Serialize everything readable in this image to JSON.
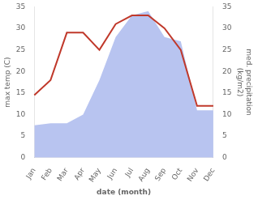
{
  "chart_data": {
    "type": "line",
    "categories": [
      "Jan",
      "Feb",
      "Mar",
      "Apr",
      "May",
      "Jun",
      "Jul",
      "Aug",
      "Sep",
      "Oct",
      "Nov",
      "Dec"
    ],
    "series": [
      {
        "type": "line",
        "color": "#c0392b",
        "values": [
          14.5,
          18,
          29,
          29,
          25,
          31,
          33,
          33,
          30,
          25,
          12,
          12
        ]
      },
      {
        "type": "area",
        "color": "#b8c4f0",
        "axis": "y2",
        "values": [
          7.5,
          8,
          8,
          10,
          18,
          28,
          33,
          34,
          28,
          27,
          11,
          11
        ]
      }
    ],
    "xlabel": "date (month)",
    "ylabel": "max temp (C)",
    "y2label": "med. precipitation\n(kg/m2)",
    "ylim": [
      0,
      35
    ],
    "yticks": [
      0,
      5,
      10,
      15,
      20,
      25,
      30,
      35
    ],
    "y2lim": [
      0,
      35
    ],
    "y2ticks": [
      0,
      5,
      10,
      15,
      20,
      25,
      30,
      35
    ],
    "grid": false
  }
}
